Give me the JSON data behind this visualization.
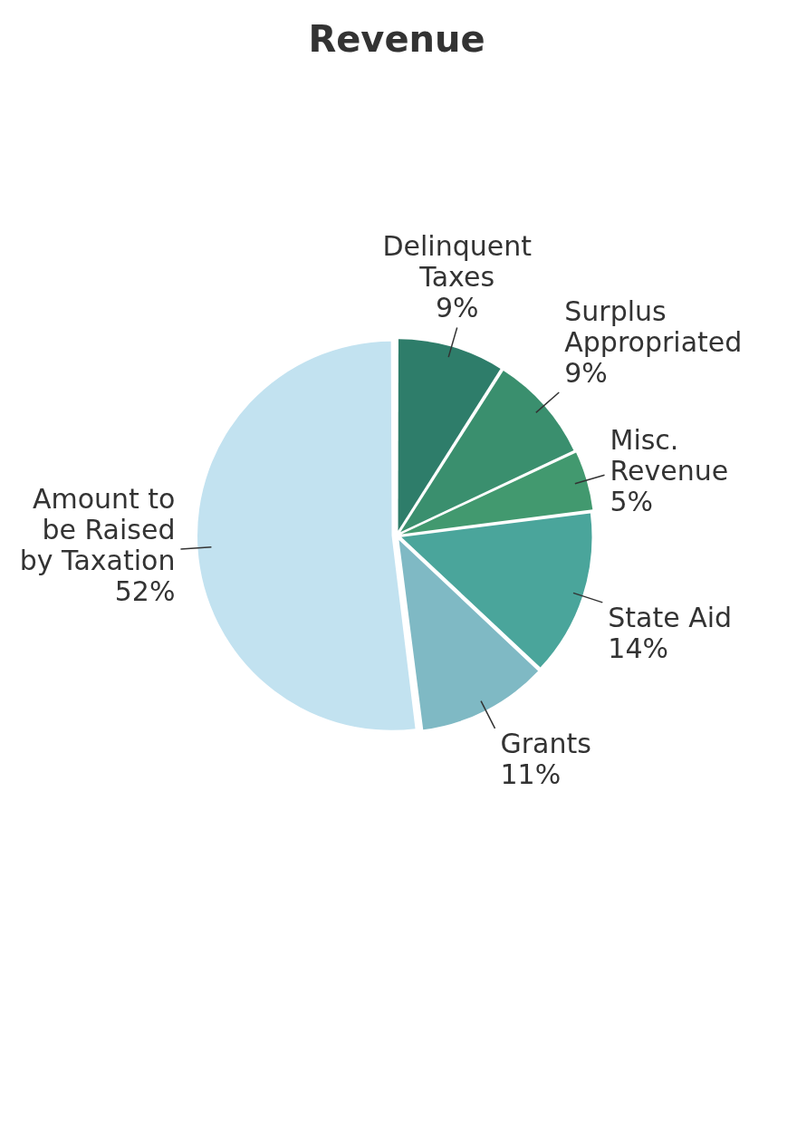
{
  "chart_data": {
    "type": "pie",
    "title": "Revenue",
    "categories": [
      "Delinquent Taxes",
      "Surplus Appropriated",
      "Misc. Revenue",
      "State Aid",
      "Grants",
      "Amount to be Raised by Taxation"
    ],
    "values": [
      9,
      9,
      5,
      14,
      11,
      52
    ],
    "value_labels": [
      "9%",
      "9%",
      "5%",
      "14%",
      "11%",
      "52%"
    ],
    "colors": [
      "#2e7d6a",
      "#3a8f6e",
      "#42996f",
      "#4aa59b",
      "#7fb9c4",
      "#c2e2f0"
    ],
    "legend": false
  }
}
